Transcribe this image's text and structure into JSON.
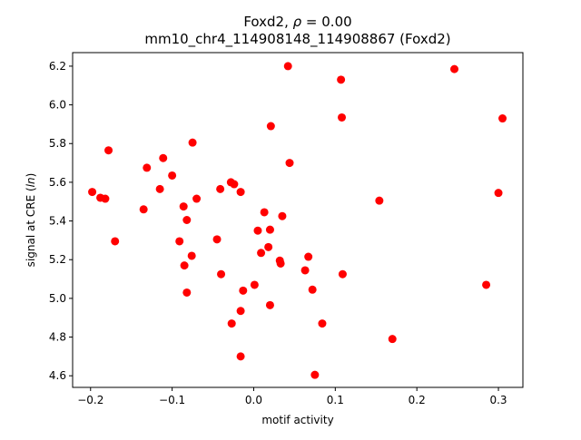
{
  "chart_data": {
    "type": "scatter",
    "title_prefix": "Foxd2, ",
    "title_rho": "ρ",
    "title_suffix": " = 0.00",
    "subtitle": "mm10_chr4_114908148_114908867 (Foxd2)",
    "xlabel": "motif activity",
    "ylabel_prefix": "signal at CRE (",
    "ylabel_ln": "ln",
    "ylabel_suffix": ")",
    "xlim": [
      -0.222,
      0.33
    ],
    "ylim": [
      4.54,
      6.27
    ],
    "xticks": [
      -0.2,
      -0.1,
      0.0,
      0.1,
      0.2,
      0.3
    ],
    "xtick_labels": [
      "−0.2",
      "−0.1",
      "0.0",
      "0.1",
      "0.2",
      "0.3"
    ],
    "yticks": [
      4.6,
      4.8,
      5.0,
      5.2,
      5.4,
      5.6,
      5.8,
      6.0,
      6.2
    ],
    "ytick_labels": [
      "4.6",
      "4.8",
      "5.0",
      "5.2",
      "5.4",
      "5.6",
      "5.8",
      "6.0",
      "6.2"
    ],
    "grid": false,
    "marker_color": "#ff0000",
    "points": [
      {
        "x": -0.198,
        "y": 5.55
      },
      {
        "x": -0.188,
        "y": 5.52
      },
      {
        "x": -0.182,
        "y": 5.515
      },
      {
        "x": -0.178,
        "y": 5.765
      },
      {
        "x": -0.17,
        "y": 5.295
      },
      {
        "x": -0.135,
        "y": 5.46
      },
      {
        "x": -0.131,
        "y": 5.675
      },
      {
        "x": -0.115,
        "y": 5.565
      },
      {
        "x": -0.111,
        "y": 5.725
      },
      {
        "x": -0.1,
        "y": 5.635
      },
      {
        "x": -0.091,
        "y": 5.295
      },
      {
        "x": -0.086,
        "y": 5.475
      },
      {
        "x": -0.085,
        "y": 5.17
      },
      {
        "x": -0.082,
        "y": 5.405
      },
      {
        "x": -0.082,
        "y": 5.03
      },
      {
        "x": -0.075,
        "y": 5.805
      },
      {
        "x": -0.076,
        "y": 5.22
      },
      {
        "x": -0.07,
        "y": 5.515
      },
      {
        "x": -0.045,
        "y": 5.305
      },
      {
        "x": -0.041,
        "y": 5.565
      },
      {
        "x": -0.04,
        "y": 5.125
      },
      {
        "x": -0.028,
        "y": 5.6
      },
      {
        "x": -0.024,
        "y": 5.59
      },
      {
        "x": -0.027,
        "y": 4.87
      },
      {
        "x": -0.016,
        "y": 5.55
      },
      {
        "x": -0.016,
        "y": 4.935
      },
      {
        "x": -0.016,
        "y": 4.7
      },
      {
        "x": -0.013,
        "y": 5.04
      },
      {
        "x": 0.001,
        "y": 5.07
      },
      {
        "x": 0.005,
        "y": 5.35
      },
      {
        "x": 0.009,
        "y": 5.235
      },
      {
        "x": 0.013,
        "y": 5.445
      },
      {
        "x": 0.018,
        "y": 5.265
      },
      {
        "x": 0.02,
        "y": 5.355
      },
      {
        "x": 0.021,
        "y": 5.89
      },
      {
        "x": 0.02,
        "y": 4.965
      },
      {
        "x": 0.032,
        "y": 5.195
      },
      {
        "x": 0.033,
        "y": 5.18
      },
      {
        "x": 0.035,
        "y": 5.425
      },
      {
        "x": 0.042,
        "y": 6.2
      },
      {
        "x": 0.044,
        "y": 5.7
      },
      {
        "x": 0.063,
        "y": 5.145
      },
      {
        "x": 0.067,
        "y": 5.215
      },
      {
        "x": 0.072,
        "y": 5.045
      },
      {
        "x": 0.075,
        "y": 4.605
      },
      {
        "x": 0.084,
        "y": 4.87
      },
      {
        "x": 0.107,
        "y": 6.13
      },
      {
        "x": 0.108,
        "y": 5.935
      },
      {
        "x": 0.109,
        "y": 5.125
      },
      {
        "x": 0.154,
        "y": 5.505
      },
      {
        "x": 0.17,
        "y": 4.79
      },
      {
        "x": 0.246,
        "y": 6.185
      },
      {
        "x": 0.285,
        "y": 5.07
      },
      {
        "x": 0.3,
        "y": 5.545
      },
      {
        "x": 0.305,
        "y": 5.93
      }
    ]
  }
}
